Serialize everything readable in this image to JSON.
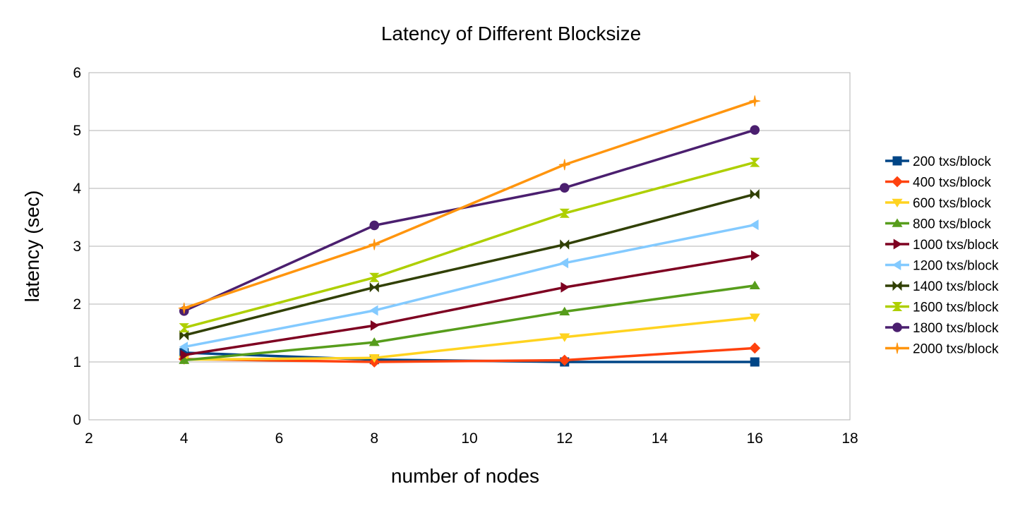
{
  "chart_data": {
    "type": "line",
    "title": "Latency of Different Blocksize",
    "xlabel": "number of nodes",
    "ylabel": "latency (sec)",
    "xlim": [
      2,
      18
    ],
    "ylim": [
      0,
      6
    ],
    "xticks": [
      2,
      4,
      6,
      8,
      10,
      12,
      14,
      16,
      18
    ],
    "yticks": [
      0,
      1,
      2,
      3,
      4,
      5,
      6
    ],
    "grid": "horizontal",
    "legend": "right",
    "x": [
      4,
      8,
      12,
      16
    ],
    "series": [
      {
        "name": "200 txs/block",
        "color": "#004586",
        "marker": "square",
        "values": [
          1.16,
          1.04,
          1.0,
          1.0
        ]
      },
      {
        "name": "400 txs/block",
        "color": "#ff420e",
        "marker": "diamond",
        "values": [
          1.05,
          1.0,
          1.03,
          1.24
        ]
      },
      {
        "name": "600 txs/block",
        "color": "#ffd320",
        "marker": "triangle-down",
        "values": [
          1.04,
          1.07,
          1.43,
          1.77
        ]
      },
      {
        "name": "800 txs/block",
        "color": "#579d1c",
        "marker": "triangle-up",
        "values": [
          1.03,
          1.34,
          1.87,
          2.32
        ]
      },
      {
        "name": "1000 txs/block",
        "color": "#7e0021",
        "marker": "triangle-right",
        "values": [
          1.12,
          1.63,
          2.29,
          2.84
        ]
      },
      {
        "name": "1200 txs/block",
        "color": "#83caff",
        "marker": "triangle-left",
        "values": [
          1.26,
          1.89,
          2.71,
          3.37
        ]
      },
      {
        "name": "1400 txs/block",
        "color": "#314004",
        "marker": "bowtie",
        "values": [
          1.46,
          2.29,
          3.03,
          3.9
        ]
      },
      {
        "name": "1600 txs/block",
        "color": "#aecf00",
        "marker": "hourglass",
        "values": [
          1.59,
          2.46,
          3.57,
          4.45
        ]
      },
      {
        "name": "1800 txs/block",
        "color": "#4b1f6f",
        "marker": "circle",
        "values": [
          1.88,
          3.36,
          4.01,
          5.01
        ]
      },
      {
        "name": "2000 txs/block",
        "color": "#ff950e",
        "marker": "star",
        "values": [
          1.93,
          3.03,
          4.41,
          5.51
        ]
      }
    ]
  }
}
